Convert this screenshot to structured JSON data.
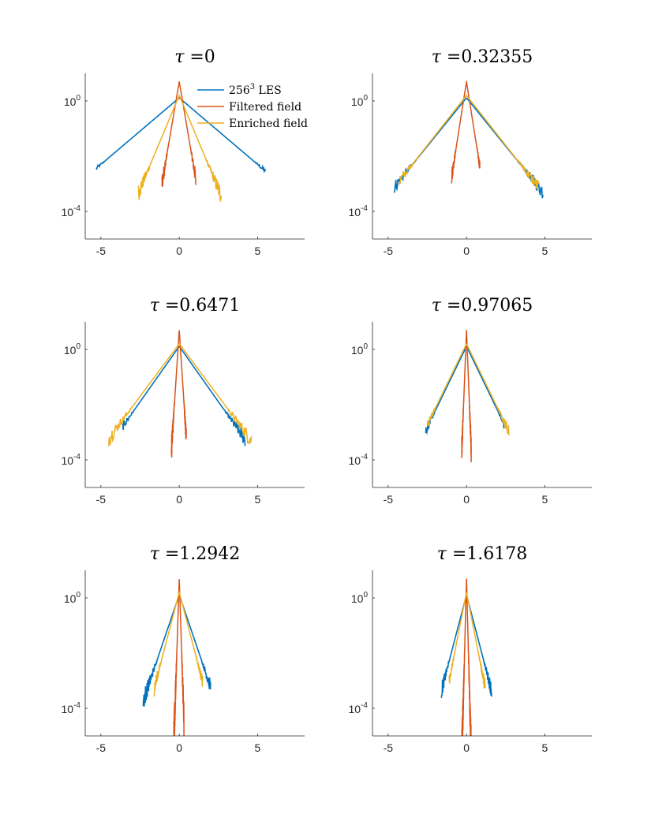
{
  "colors": {
    "les": "#0072BD",
    "filtered": "#D95319",
    "enriched": "#EDB120",
    "axis": "#262626"
  },
  "chart_data": {
    "type": "line",
    "layout": "3x2 grid of subplots",
    "y_scale": "log",
    "xlim": [
      -6,
      8
    ],
    "ylim": [
      1e-05,
      10
    ],
    "xticks": [
      -5,
      0,
      5
    ],
    "xtick_labels": [
      "-5",
      "0",
      "5"
    ],
    "yticks": [
      0.0001,
      1
    ],
    "ytick_labels": [
      {
        "base": "10",
        "exponent": "-4"
      },
      {
        "base": "10",
        "exponent": "0"
      }
    ],
    "legend": {
      "location": "north-east of first subplot",
      "entries": [
        {
          "key": "les",
          "base": "256",
          "sup": "3",
          "rest": " LES"
        },
        {
          "key": "filtered",
          "label": "Filtered field"
        },
        {
          "key": "enriched",
          "label": "Enriched field"
        }
      ]
    },
    "peak": {
      "les": 1.3,
      "filtered": 5.0,
      "enriched": 1.6
    },
    "subplots": [
      {
        "title": "τ =0",
        "tau": 0,
        "les": {
          "scale": 0.9,
          "xmin": -5.3,
          "xmax": 5.5
        },
        "filtered": {
          "scale": 0.13,
          "xmin": -1.1,
          "xmax": 1.05
        },
        "enriched": {
          "scale": 0.32,
          "xmin": -2.6,
          "xmax": 2.7
        }
      },
      {
        "title": "τ =0.32355",
        "tau": 0.32355,
        "les": {
          "scale": 0.62,
          "xmin": -4.6,
          "xmax": 4.9
        },
        "filtered": {
          "scale": 0.12,
          "xmin": -0.95,
          "xmax": 0.85
        },
        "enriched": {
          "scale": 0.6,
          "xmin": -4.3,
          "xmax": 4.6
        }
      },
      {
        "title": "τ =0.6471",
        "tau": 0.6471,
        "les": {
          "scale": 0.54,
          "xmin": -3.6,
          "xmax": 4.2
        },
        "filtered": {
          "scale": 0.05,
          "xmin": -0.5,
          "xmax": 0.45
        },
        "enriched": {
          "scale": 0.57,
          "xmin": -4.5,
          "xmax": 4.6
        }
      },
      {
        "title": "τ =0.97065",
        "tau": 0.97065,
        "les": {
          "scale": 0.37,
          "xmin": -2.6,
          "xmax": 2.4
        },
        "filtered": {
          "scale": 0.03,
          "xmin": -0.3,
          "xmax": 0.3
        },
        "enriched": {
          "scale": 0.37,
          "xmin": -2.5,
          "xmax": 2.7
        }
      },
      {
        "title": "τ =1.2942",
        "tau": 1.2942,
        "les": {
          "scale": 0.26,
          "xmin": -2.3,
          "xmax": 2.0
        },
        "filtered": {
          "scale": 0.025,
          "xmin": -0.35,
          "xmax": 0.3
        },
        "enriched": {
          "scale": 0.2,
          "xmin": -1.6,
          "xmax": 1.5
        }
      },
      {
        "title": "τ =1.6178",
        "tau": 1.6178,
        "les": {
          "scale": 0.2,
          "xmin": -1.6,
          "xmax": 1.6
        },
        "filtered": {
          "scale": 0.02,
          "xmin": -0.3,
          "xmax": 0.3
        },
        "enriched": {
          "scale": 0.15,
          "xmin": -1.1,
          "xmax": 1.2
        }
      }
    ]
  }
}
